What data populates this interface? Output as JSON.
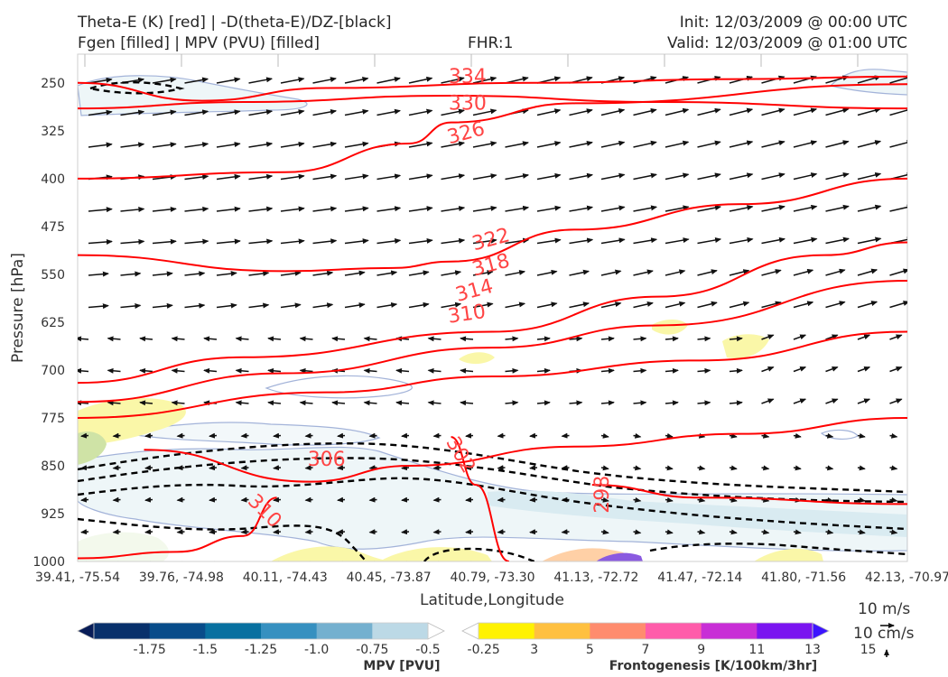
{
  "header": {
    "title_line1": "Theta-E (K) [red] | -D(theta-E)/DZ-[black]",
    "title_line2": "Fgen [filled] | MPV (PVU) [filled]",
    "fhr": "FHR:1",
    "init": "Init: 12/03/2009 @ 00:00 UTC",
    "valid": "Valid: 12/03/2009 @ 01:00 UTC"
  },
  "chart_data": {
    "type": "cross-section",
    "xlabel": "Latitude,Longitude",
    "ylabel": "Pressure [hPa]",
    "x_ticks": [
      "39.41, -75.54",
      "39.76, -74.98",
      "40.11, -74.43",
      "40.45, -73.87",
      "40.79, -73.30",
      "41.13, -72.72",
      "41.47, -72.14",
      "41.80, -71.56",
      "42.13, -70.97"
    ],
    "y_ticks": [
      250,
      325,
      400,
      475,
      550,
      625,
      700,
      775,
      850,
      925,
      1000
    ],
    "ylim": [
      205,
      1000
    ],
    "y_inverted": true,
    "theta_e_contours": [
      {
        "label": "334",
        "level": 334,
        "points": [
          [
            0,
            250
          ],
          [
            0.15,
            278
          ],
          [
            0.3,
            258
          ],
          [
            0.55,
            250
          ],
          [
            0.8,
            244
          ],
          [
            1,
            240
          ]
        ]
      },
      {
        "label": "330",
        "level": 330,
        "points": [
          [
            0,
            290
          ],
          [
            0.2,
            280
          ],
          [
            0.45,
            270
          ],
          [
            0.7,
            280
          ],
          [
            1,
            290
          ]
        ]
      },
      {
        "label": "326",
        "level": 326,
        "points": [
          [
            0,
            400
          ],
          [
            0.25,
            390
          ],
          [
            0.4,
            345
          ],
          [
            0.45,
            312
          ],
          [
            0.6,
            282
          ],
          [
            1,
            252
          ]
        ]
      },
      {
        "label": "322",
        "level": 322,
        "points": [
          [
            0,
            520
          ],
          [
            0.25,
            545
          ],
          [
            0.38,
            540
          ],
          [
            0.45,
            530
          ],
          [
            0.6,
            480
          ],
          [
            0.8,
            440
          ],
          [
            1,
            400
          ]
        ]
      },
      {
        "label": "318",
        "level": 318,
        "points": [
          [
            0,
            720
          ],
          [
            0.2,
            680
          ],
          [
            0.5,
            640
          ],
          [
            0.7,
            585
          ],
          [
            0.9,
            520
          ],
          [
            1,
            500
          ]
        ]
      },
      {
        "label": "314",
        "level": 314,
        "points": [
          [
            0,
            750
          ],
          [
            0.25,
            705
          ],
          [
            0.5,
            665
          ],
          [
            0.7,
            630
          ],
          [
            1,
            560
          ]
        ]
      },
      {
        "label": "310",
        "level": 310,
        "points": [
          [
            0,
            775
          ],
          [
            0.3,
            735
          ],
          [
            0.5,
            710
          ],
          [
            0.75,
            685
          ],
          [
            1,
            640
          ]
        ]
      },
      {
        "label": "306",
        "level": 306,
        "points": [
          [
            0.08,
            825
          ],
          [
            0.28,
            875
          ],
          [
            0.4,
            850
          ],
          [
            0.6,
            820
          ],
          [
            0.8,
            800
          ],
          [
            1,
            775
          ]
        ]
      },
      {
        "label": "302",
        "level": 302,
        "points": [
          [
            0.45,
            805
          ],
          [
            0.48,
            880
          ],
          [
            0.52,
            1000
          ]
        ]
      },
      {
        "label": "298",
        "level": 298,
        "points": [
          [
            0.62,
            880
          ],
          [
            0.75,
            900
          ],
          [
            1,
            910
          ]
        ]
      },
      {
        "label": "310",
        "level": 310,
        "points": [
          [
            0.0,
            995
          ],
          [
            0.12,
            985
          ],
          [
            0.2,
            960
          ],
          [
            0.24,
            900
          ]
        ]
      }
    ],
    "wind_vector_reference": {
      "horizontal": "10 m/s",
      "vertical": "10 cm/s"
    },
    "colorbars": [
      {
        "label": "MPV [PVU]",
        "ticks": [
          "-1.75",
          "-1.5",
          "-1.25",
          "-1.0",
          "-0.75",
          "-0.5",
          "-0.25"
        ],
        "colors": [
          "#081d58",
          "#08306b",
          "#084c8a",
          "#0870a0",
          "#3690c0",
          "#74b0cf",
          "#bcd9e6",
          "#ffffff"
        ]
      },
      {
        "label": "Frontogenesis [K/100km/3hr]",
        "ticks": [
          "3",
          "5",
          "7",
          "9",
          "11",
          "13",
          "15"
        ],
        "colors": [
          "#ffffff",
          "#fff200",
          "#ffc040",
          "#ff8c6e",
          "#ff5caa",
          "#c82ed6",
          "#7a14f0",
          "#3c14ff"
        ]
      }
    ],
    "colors": {
      "theta_e": "#ff0000",
      "theta_e_label": "#ff5555",
      "dthetae_dz": "#000000",
      "mpv_outline": "#a3b3d9"
    }
  }
}
